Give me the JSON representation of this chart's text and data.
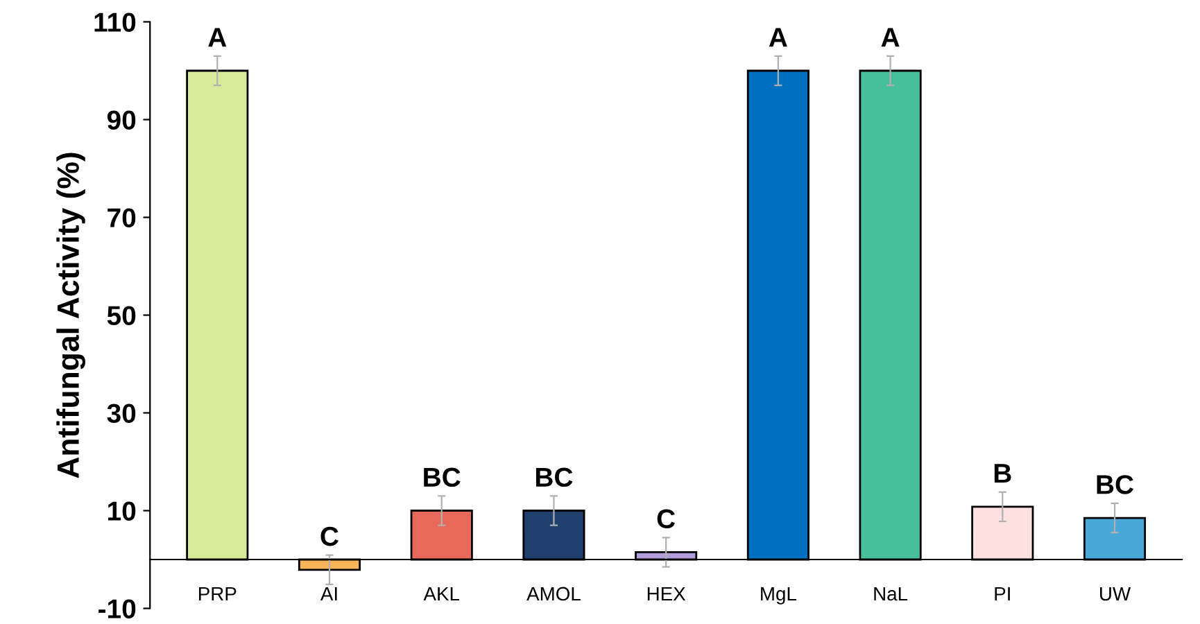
{
  "chart_data": {
    "type": "bar",
    "ylabel": "Antifungal Activity (%)",
    "categories": [
      "PRP",
      "AI",
      "AKL",
      "AMOL",
      "HEX",
      "MgL",
      "NaL",
      "PI",
      "UW"
    ],
    "values": [
      100,
      -2.1,
      10,
      10,
      1.5,
      100,
      100,
      10.8,
      8.5
    ],
    "errors": [
      3,
      3,
      3,
      3,
      3,
      3,
      3,
      3,
      3
    ],
    "colors": [
      "#d7ea9a",
      "#f7b459",
      "#e8685a",
      "#1f3f6e",
      "#b39ddb",
      "#0070c0",
      "#48bf9b",
      "#fde0e0",
      "#4aa8d8"
    ],
    "ylim": [
      -10,
      110
    ],
    "yticks": [
      -10,
      10,
      30,
      50,
      70,
      90,
      110
    ],
    "grid": false,
    "annotations": [
      {
        "text": "A",
        "x": "PRP",
        "y": 103
      },
      {
        "text": "C",
        "x": "AI",
        "y": 0.9
      },
      {
        "text": "BC",
        "x": "AKL",
        "y": 13
      },
      {
        "text": "BC",
        "x": "AMOL",
        "y": 13
      },
      {
        "text": "C",
        "x": "HEX",
        "y": 4.5
      },
      {
        "text": "A",
        "x": "MgL",
        "y": 103
      },
      {
        "text": "A",
        "x": "NaL",
        "y": 103
      },
      {
        "text": "B",
        "x": "PI",
        "y": 13.8
      },
      {
        "text": "BC",
        "x": "UW",
        "y": 11.5
      }
    ]
  }
}
